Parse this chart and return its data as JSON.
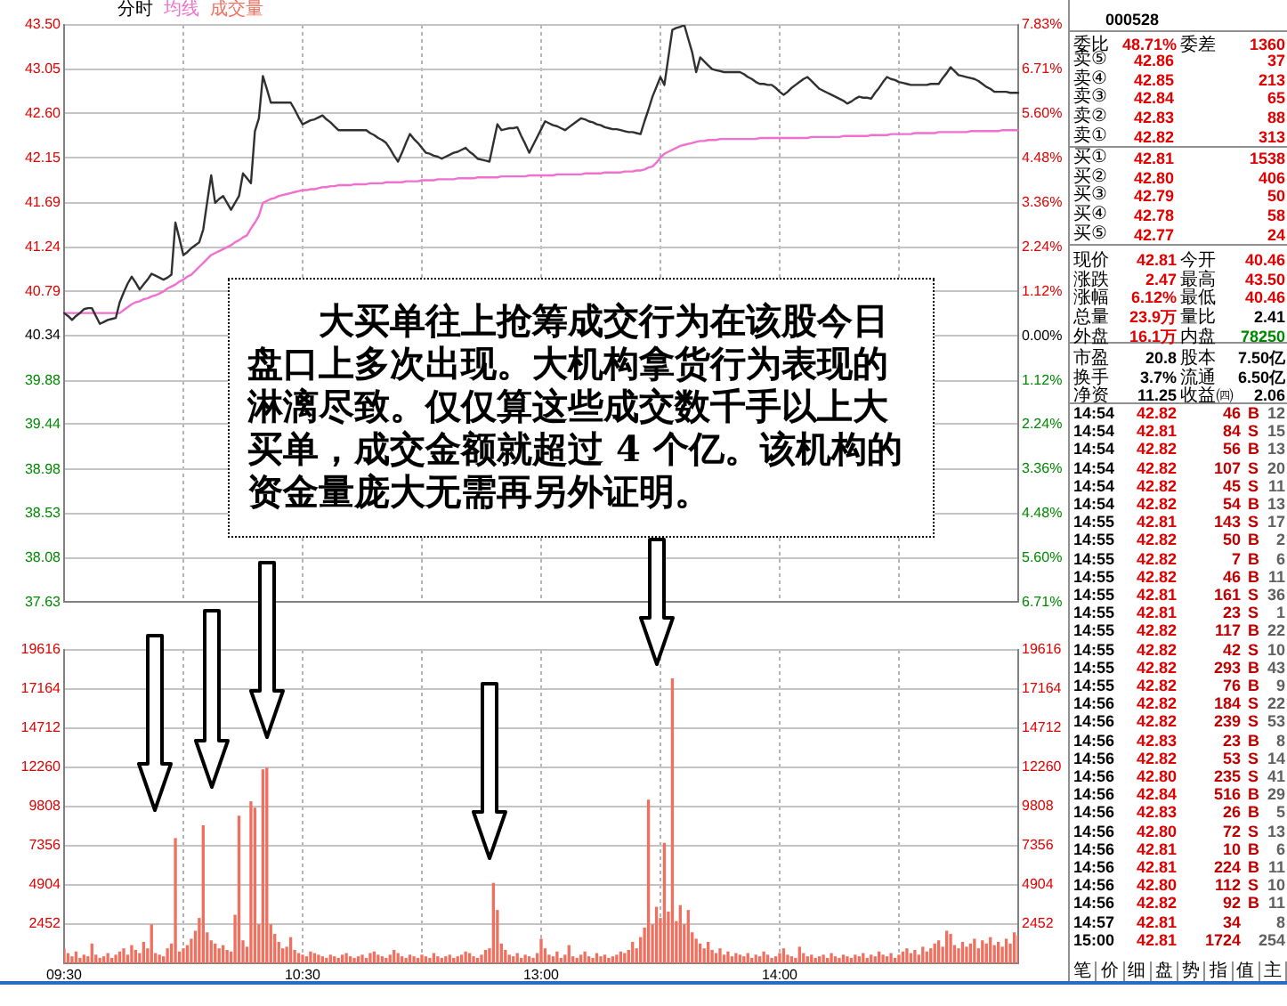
{
  "chart_data": [
    {
      "type": "line",
      "title": "分时",
      "categories": [
        null,
        null,
        null,
        null,
        null,
        null,
        null,
        null,
        null,
        null,
        null,
        null,
        null,
        null,
        null,
        null,
        null,
        null,
        null,
        null,
        null,
        null,
        null,
        null,
        null,
        null,
        null,
        null,
        null,
        null,
        null,
        null,
        null,
        null,
        null,
        null,
        null,
        null,
        null,
        null,
        null,
        null,
        null,
        null,
        null,
        null,
        null,
        null,
        null,
        null,
        null,
        null,
        null,
        null,
        null,
        null,
        null,
        null,
        null,
        null,
        null,
        null,
        null,
        null,
        null,
        null,
        null,
        null,
        null,
        null,
        null,
        null,
        null,
        null,
        null,
        null,
        null,
        null,
        null,
        null,
        null,
        null,
        null,
        null,
        null,
        null,
        null,
        null,
        null,
        null,
        null,
        null,
        null,
        null,
        null,
        null,
        null,
        null,
        null,
        null,
        null,
        null,
        null,
        null,
        null,
        null,
        null,
        null,
        null,
        null,
        null,
        null,
        null,
        null,
        null,
        null,
        null,
        null,
        null,
        null,
        null,
        null,
        null,
        null,
        null,
        null,
        null,
        null,
        null,
        null,
        null,
        null,
        null,
        null,
        null,
        null,
        null,
        null,
        null,
        null,
        null,
        null,
        null,
        null,
        null,
        null,
        null,
        null,
        null,
        null,
        null,
        null,
        null,
        null,
        null,
        null,
        null,
        null,
        null,
        null,
        null,
        null,
        null,
        null,
        null,
        null,
        null,
        null,
        null,
        null,
        null,
        null,
        null,
        null,
        null,
        null,
        null,
        null,
        null,
        null,
        null,
        null,
        null,
        null,
        null,
        null,
        null,
        null,
        null,
        null,
        null,
        null,
        null,
        null,
        null,
        null,
        null,
        null,
        null,
        null,
        null,
        null,
        null,
        null,
        null,
        null,
        null,
        null,
        null,
        null,
        null,
        null,
        null,
        null,
        null,
        null,
        null,
        null,
        null,
        null,
        null,
        null,
        null,
        null,
        null,
        null,
        null,
        null,
        null,
        null,
        null,
        null,
        null,
        null,
        null,
        null,
        null,
        null,
        null,
        null,
        null
      ],
      "ylim": [
        37.63,
        43.5
      ],
      "yticks": [
        {
          "value": 43.5,
          "label": "43.50"
        },
        43.05,
        {
          "value": 42.6,
          "label": "42.60"
        },
        42.15,
        41.69,
        41.24,
        40.79,
        40.34,
        39.88,
        39.44,
        38.98,
        38.53,
        38.08,
        37.63
      ],
      "y2lim": [
        -6.71,
        7.83
      ],
      "y2ticks": [
        {
          "value": 7.83,
          "label": "7.83%"
        },
        {
          "value": 6.71,
          "label": "6.71%"
        },
        {
          "value": 5.6,
          "label": "5.60%"
        },
        {
          "value": 4.48,
          "label": "4.48%"
        },
        {
          "value": 3.36,
          "label": "3.36%"
        },
        {
          "value": 2.24,
          "label": "2.24%"
        },
        {
          "value": 1.12,
          "label": "1.12%"
        },
        {
          "value": 0,
          "label": "0.00%"
        },
        {
          "value": -1.12,
          "label": "1.12%"
        },
        {
          "value": -2.24,
          "label": "2.24%"
        },
        {
          "value": -3.36,
          "label": "3.36%"
        },
        {
          "value": -4.48,
          "label": "4.48%"
        },
        {
          "value": -5.6,
          "label": "5.60%"
        },
        {
          "value": -6.71,
          "label": "6.71%"
        }
      ],
      "tick_labels": "y",
      "grid": true,
      "legend": "top left",
      "annotations": [
        "大买单往上抢筹成交行为在该股今日盘口上多次出现。大机构拿货行为表现的淋漓尽致。仅仅算这些成交数千手以上大买单，成交金额就超过 4 个亿。该机构的资金量庞大无需再另外证明。"
      ],
      "series": [
        {
          "color": "#303030",
          "values": [
            40.57,
            40.54,
            40.5,
            40.54,
            40.57,
            40.61,
            40.62,
            40.62,
            40.54,
            40.46,
            40.48,
            40.5,
            40.51,
            40.52,
            40.68,
            40.78,
            40.87,
            40.94,
            40.88,
            40.81,
            40.86,
            40.91,
            40.97,
            40.95,
            40.93,
            40.91,
            40.93,
            40.96,
            41.49,
            41.33,
            41.16,
            41.19,
            41.23,
            41.26,
            41.29,
            41.42,
            41.7,
            41.97,
            41.69,
            41.73,
            41.76,
            41.69,
            41.62,
            41.69,
            41.76,
            41.99,
            41.94,
            41.89,
            42.42,
            42.55,
            42.98,
            42.85,
            42.71,
            42.71,
            42.71,
            42.71,
            42.71,
            42.71,
            42.64,
            42.56,
            42.49,
            42.51,
            42.53,
            42.54,
            42.56,
            42.58,
            42.54,
            42.51,
            42.47,
            42.43,
            42.43,
            42.43,
            42.43,
            42.43,
            42.43,
            42.43,
            42.43,
            42.4,
            42.38,
            42.35,
            42.33,
            42.3,
            42.24,
            42.17,
            42.11,
            42.2,
            42.3,
            42.39,
            42.34,
            42.3,
            42.25,
            42.2,
            42.19,
            42.17,
            42.16,
            42.14,
            42.16,
            42.18,
            42.2,
            42.21,
            42.23,
            42.25,
            42.21,
            42.18,
            42.14,
            42.13,
            42.12,
            42.11,
            42.3,
            42.49,
            42.43,
            42.44,
            42.45,
            42.45,
            42.46,
            42.37,
            42.29,
            42.2,
            42.28,
            42.36,
            42.44,
            42.52,
            42.5,
            42.48,
            42.47,
            42.45,
            42.43,
            42.46,
            42.49,
            42.52,
            42.55,
            42.54,
            42.52,
            42.51,
            42.49,
            42.48,
            42.46,
            42.45,
            42.44,
            42.44,
            42.43,
            42.42,
            42.41,
            42.41,
            42.4,
            42.39,
            42.52,
            42.64,
            42.77,
            42.87,
            42.97,
            42.89,
            43.17,
            43.45,
            43.47,
            43.48,
            43.5,
            43.36,
            43.22,
            43.02,
            43.17,
            43.13,
            43.09,
            43.05,
            43.04,
            43.03,
            43.02,
            43.02,
            43.02,
            43.02,
            43.02,
            43.0,
            42.97,
            42.95,
            42.92,
            42.9,
            42.9,
            42.89,
            42.89,
            42.86,
            42.82,
            42.79,
            42.82,
            42.86,
            42.89,
            42.92,
            42.95,
            42.97,
            42.93,
            42.89,
            42.85,
            42.83,
            42.81,
            42.79,
            42.77,
            42.75,
            42.73,
            42.7,
            42.72,
            42.75,
            42.77,
            42.76,
            42.76,
            42.75,
            42.81,
            42.86,
            42.92,
            42.97,
            42.95,
            42.94,
            42.92,
            42.91,
            42.9,
            42.89,
            42.89,
            42.89,
            42.89,
            42.89,
            42.9,
            42.9,
            42.9,
            42.96,
            43.01,
            43.07,
            43.03,
            42.99,
            42.98,
            42.97,
            42.96,
            42.95,
            42.93,
            42.9,
            42.87,
            42.85,
            42.82,
            42.82,
            42.82,
            42.82,
            42.81,
            42.81,
            42.81
          ]
        },
        {
          "name": "均线",
          "color": "#f070d0",
          "values": [
            40.57,
            40.57,
            40.57,
            40.57,
            40.57,
            40.57,
            40.57,
            40.57,
            40.57,
            40.57,
            40.57,
            40.57,
            40.57,
            40.57,
            40.57,
            40.6,
            40.63,
            40.66,
            40.68,
            40.69,
            40.71,
            40.72,
            40.74,
            40.75,
            40.77,
            40.79,
            40.82,
            40.84,
            40.86,
            40.89,
            40.91,
            40.94,
            40.96,
            41.0,
            41.04,
            41.08,
            41.12,
            41.16,
            41.18,
            41.2,
            41.22,
            41.24,
            41.26,
            41.29,
            41.31,
            41.34,
            41.36,
            41.43,
            41.49,
            41.56,
            41.69,
            41.71,
            41.73,
            41.74,
            41.76,
            41.77,
            41.78,
            41.79,
            41.8,
            41.81,
            41.82,
            41.82,
            41.83,
            41.83,
            41.84,
            41.85,
            41.85,
            41.86,
            41.86,
            41.87,
            41.87,
            41.87,
            41.87,
            41.88,
            41.88,
            41.88,
            41.88,
            41.89,
            41.89,
            41.89,
            41.89,
            41.9,
            41.9,
            41.9,
            41.9,
            41.9,
            41.91,
            41.91,
            41.91,
            41.91,
            41.92,
            41.92,
            41.92,
            41.92,
            41.93,
            41.93,
            41.93,
            41.93,
            41.93,
            41.94,
            41.94,
            41.94,
            41.94,
            41.94,
            41.95,
            41.95,
            41.95,
            41.95,
            41.95,
            41.95,
            41.96,
            41.96,
            41.96,
            41.96,
            41.96,
            41.96,
            41.96,
            41.97,
            41.97,
            41.97,
            41.97,
            41.97,
            41.97,
            41.97,
            41.98,
            41.98,
            41.98,
            41.98,
            41.98,
            41.98,
            41.98,
            41.99,
            41.99,
            41.99,
            41.99,
            41.99,
            42.0,
            42.0,
            42.0,
            42.0,
            42.0,
            42.01,
            42.01,
            42.01,
            42.02,
            42.02,
            42.03,
            42.05,
            42.06,
            42.1,
            42.15,
            42.19,
            42.21,
            42.23,
            42.25,
            42.27,
            42.28,
            42.29,
            42.3,
            42.31,
            42.32,
            42.32,
            42.33,
            42.33,
            42.33,
            42.34,
            42.34,
            42.34,
            42.34,
            42.34,
            42.34,
            42.34,
            42.34,
            42.34,
            42.34,
            42.35,
            42.35,
            42.35,
            42.35,
            42.35,
            42.35,
            42.35,
            42.35,
            42.35,
            42.35,
            42.35,
            42.35,
            42.35,
            42.36,
            42.36,
            42.36,
            42.36,
            42.36,
            42.36,
            42.36,
            42.36,
            42.37,
            42.37,
            42.37,
            42.37,
            42.37,
            42.37,
            42.37,
            42.38,
            42.38,
            42.38,
            42.38,
            42.38,
            42.39,
            42.39,
            42.39,
            42.39,
            42.39,
            42.39,
            42.4,
            42.4,
            42.4,
            42.4,
            42.4,
            42.4,
            42.41,
            42.41,
            42.41,
            42.41,
            42.41,
            42.41,
            42.41,
            42.41,
            42.42,
            42.42,
            42.42,
            42.42,
            42.42,
            42.42,
            42.42,
            42.42,
            42.43,
            42.43,
            42.43,
            42.43,
            42.43
          ]
        }
      ]
    },
    {
      "type": "bar",
      "categories": [
        "09:30",
        null,
        null,
        null,
        null,
        null,
        null,
        null,
        null,
        null,
        null,
        null,
        null,
        null,
        null,
        null,
        null,
        null,
        null,
        null,
        null,
        null,
        null,
        null,
        null,
        null,
        null,
        null,
        null,
        null,
        null,
        null,
        null,
        null,
        null,
        null,
        null,
        null,
        null,
        null,
        null,
        null,
        null,
        null,
        null,
        null,
        null,
        null,
        null,
        null,
        null,
        null,
        null,
        null,
        null,
        null,
        null,
        null,
        null,
        null,
        "10:30",
        null,
        null,
        null,
        null,
        null,
        null,
        null,
        null,
        null,
        null,
        null,
        null,
        null,
        null,
        null,
        null,
        null,
        null,
        null,
        null,
        null,
        null,
        null,
        null,
        null,
        null,
        null,
        null,
        null,
        null,
        null,
        null,
        null,
        null,
        null,
        null,
        null,
        null,
        null,
        null,
        null,
        null,
        null,
        null,
        null,
        null,
        null,
        null,
        null,
        null,
        null,
        null,
        null,
        null,
        null,
        null,
        null,
        null,
        null,
        "13:00",
        null,
        null,
        null,
        null,
        null,
        null,
        null,
        null,
        null,
        null,
        null,
        null,
        null,
        null,
        null,
        null,
        null,
        null,
        null,
        null,
        null,
        null,
        null,
        null,
        null,
        null,
        null,
        null,
        null,
        null,
        null,
        null,
        null,
        null,
        null,
        null,
        null,
        null,
        null,
        null,
        null,
        null,
        null,
        null,
        null,
        null,
        null,
        null,
        null,
        null,
        null,
        null,
        null,
        null,
        null,
        null,
        null,
        null,
        null,
        "14:00",
        null,
        null,
        null,
        null,
        null,
        null,
        null,
        null,
        null,
        null,
        null,
        null,
        null,
        null,
        null,
        null,
        null,
        null,
        null,
        null,
        null,
        null,
        null,
        null,
        null,
        null,
        null,
        null,
        null,
        null,
        null,
        null,
        null,
        null,
        null,
        null,
        null,
        null,
        null,
        null,
        null,
        null,
        null,
        null,
        null,
        null,
        null,
        null,
        null,
        null,
        null,
        null,
        null,
        null,
        null,
        null,
        null,
        null,
        null,
        null
      ],
      "ylim": [
        0,
        19616
      ],
      "yticks": [
        2452,
        4904,
        7356,
        9808,
        12260,
        14712,
        17164,
        19616
      ],
      "y2lim": [
        0,
        19616
      ],
      "y2ticks": [
        2452,
        4904,
        7356,
        9808,
        12260,
        14712,
        17164,
        19616
      ],
      "grid": true,
      "legend": "top left",
      "series": [
        {
          "name": "成交量",
          "color": "#f07060",
          "values": [
            900,
            600,
            400,
            700,
            300,
            500,
            400,
            1200,
            500,
            300,
            400,
            600,
            300,
            500,
            700,
            900,
            500,
            1100,
            800,
            600,
            1300,
            900,
            2400,
            600,
            500,
            400,
            900,
            1200,
            7800,
            700,
            900,
            1100,
            1500,
            2000,
            2800,
            8600,
            1900,
            1400,
            1200,
            900,
            1100,
            800,
            700,
            3000,
            9200,
            1400,
            1000,
            10100,
            9700,
            2400,
            12100,
            12200,
            2400,
            1800,
            1300,
            900,
            1000,
            1600,
            800,
            600,
            500,
            400,
            700,
            600,
            500,
            400,
            300,
            500,
            400,
            300,
            500,
            600,
            400,
            300,
            400,
            500,
            300,
            600,
            700,
            500,
            400,
            300,
            500,
            800,
            600,
            400,
            300,
            500,
            400,
            300,
            500,
            400,
            300,
            600,
            400,
            300,
            400,
            500,
            300,
            400,
            500,
            700,
            600,
            400,
            300,
            500,
            800,
            900,
            5000,
            3300,
            1200,
            800,
            500,
            400,
            600,
            300,
            500,
            400,
            300,
            600,
            1500,
            900,
            500,
            400,
            700,
            300,
            500,
            1100,
            400,
            300,
            500,
            700,
            400,
            300,
            600,
            400,
            500,
            300,
            400,
            500,
            700,
            600,
            800,
            1300,
            900,
            1600,
            2200,
            10200,
            2400,
            3500,
            2800,
            7500,
            3200,
            17800,
            2600,
            3600,
            2400,
            3300,
            1900,
            1500,
            1200,
            900,
            1300,
            800,
            600,
            900,
            500,
            700,
            400,
            600,
            500,
            400,
            600,
            300,
            500,
            400,
            700,
            500,
            300,
            400,
            600,
            900,
            500,
            400,
            300,
            1000,
            600,
            400,
            500,
            300,
            400,
            500,
            300,
            600,
            400,
            300,
            500,
            400,
            300,
            500,
            400,
            600,
            300,
            500,
            400,
            700,
            500,
            400,
            600,
            300,
            500,
            700,
            900,
            600,
            800,
            500,
            1000,
            700,
            900,
            1200,
            1400,
            1000,
            2000,
            1800,
            1100,
            900,
            1300,
            1000,
            1200,
            1500,
            900,
            1400,
            1200,
            1600,
            1100,
            1300,
            1000,
            1500,
            1200,
            1900,
            1700
          ]
        }
      ]
    },
    {
      "type": "other",
      "annotations": [
        "000528",
        "委比 48.71% 委差 1360",
        "卖⑤ 42.86 37",
        "卖④ 42.85 213",
        "卖③ 42.84 65",
        "卖② 42.83 88",
        "卖① 42.82 313",
        "买① 42.81 1538",
        "买② 42.80 406",
        "买③ 42.79 50",
        "买④ 42.78 58",
        "买⑤ 42.77 24",
        "现价 42.81 今开 40.46",
        "涨跌 2.47 最高 43.50",
        "涨幅 6.12% 最低 40.46",
        "总量 23.9万 量比 2.41",
        "外盘 16.1万 内盘 78250",
        "市盈 20.8 股本 7.50亿",
        "换手 3.7% 流通 6.50亿",
        "净资 11.25 收益㈣ 2.06"
      ]
    },
    {
      "type": "other",
      "annotations": [
        "14:54 42.82 46 B 12",
        "14:54 42.81 84 S 15",
        "14:54 42.82 56 B 13",
        "14:54 42.82 107 S 20",
        "14:54 42.82 45 S 11",
        "14:54 42.82 54 B 13",
        "14:55 42.81 143 S 17",
        "14:55 42.82 50 B 2",
        "14:55 42.82 7 B 6",
        "14:55 42.82 46 B 11",
        "14:55 42.81 161 S 36",
        "14:55 42.81 23 S 1",
        "14:55 42.82 117 B 22",
        "14:55 42.82 42 S 10",
        "14:55 42.82 293 B 43",
        "14:55 42.82 76 B 9",
        "14:56 42.82 184 S 22",
        "14:56 42.82 239 S 53",
        "14:56 42.83 23 B 8",
        "14:56 42.82 53 S 14",
        "14:56 42.80 235 S 41",
        "14:56 42.84 516 B 29",
        "14:56 42.83 26 B 5",
        "14:56 42.80 72 S 13",
        "14:56 42.81 10 B 6",
        "14:56 42.81 224 B 11",
        "14:56 42.80 112 S 10",
        "14:56 42.82 92 B 11",
        "14:57 42.81 34 8",
        "15:00 42.81 1724 254",
        "笔 价 细 盘 势 指 值 主"
      ]
    }
  ]
}
